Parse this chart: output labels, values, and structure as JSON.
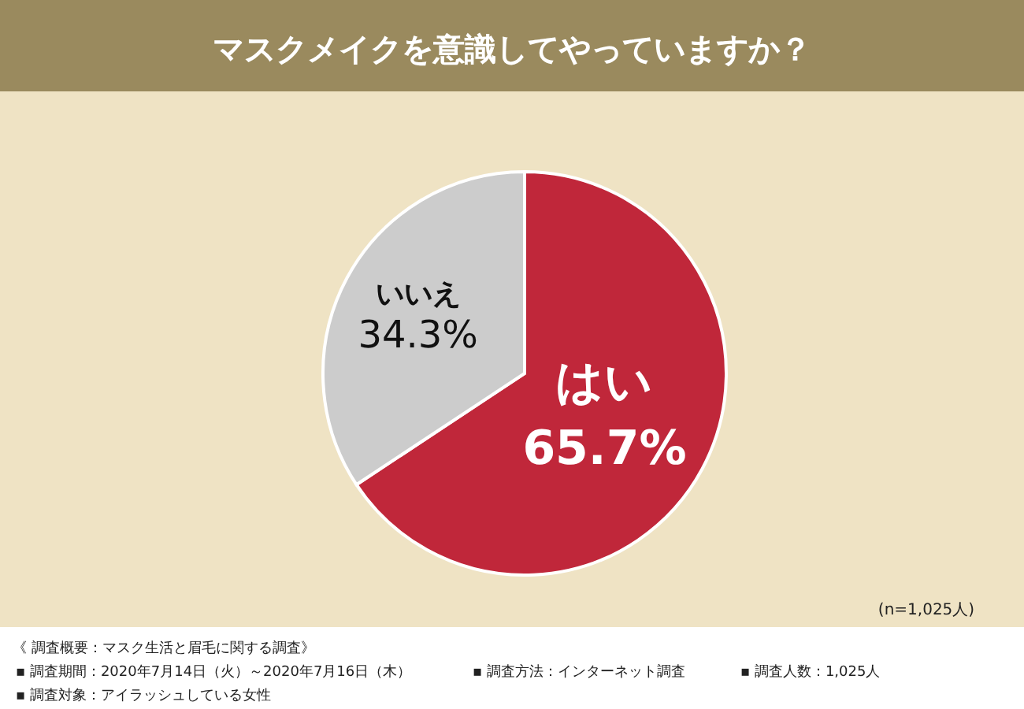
{
  "chart_data": {
    "type": "pie",
    "title": "マスクメイクを意識してやっていますか？",
    "categories": [
      "はい",
      "いいえ"
    ],
    "values": [
      65.7,
      34.3
    ],
    "value_labels": [
      "65.7%",
      "34.3%"
    ],
    "colors": [
      "#c0273a",
      "#cccccc"
    ],
    "legend": false,
    "annotations": [
      "(n=1,025人)",
      "《 調査概要：マスク生活と眉毛に関する調査》",
      "▪ 調査期間：2020年7月14日（火）～2020年7月16日（木）",
      "▪ 調査方法：インターネット調査",
      "▪ 調査人数：1,025人",
      "▪ 調査対象：アイラッシュしている女性"
    ]
  }
}
